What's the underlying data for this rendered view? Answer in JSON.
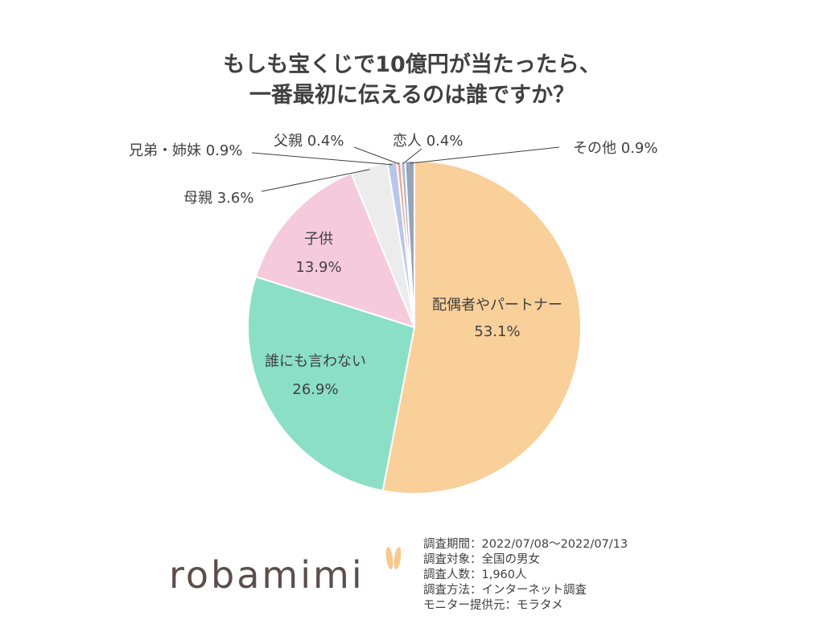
{
  "title_lines": [
    "もしも宝くじで10億円が当たったら、",
    "一番最初に伝えるのは誰ですか？"
  ],
  "chart_data": {
    "type": "pie",
    "title": "もしも宝くじで10億円が当たったら、一番最初に伝えるのは誰ですか？",
    "start": "top",
    "direction": "clockwise",
    "slices": [
      {
        "label": "配偶者やパートナー",
        "value": 53.1,
        "display": "53.1%",
        "color": "#f9d09a",
        "label_position": "inside"
      },
      {
        "label": "誰にも言わない",
        "value": 26.9,
        "display": "26.9%",
        "color": "#8adfc5",
        "label_position": "inside"
      },
      {
        "label": "子供",
        "value": 13.9,
        "display": "13.9%",
        "color": "#f6cadd",
        "label_position": "inside"
      },
      {
        "label": "母親",
        "value": 3.6,
        "display": "3.6%",
        "color": "#ececec",
        "label_position": "outside"
      },
      {
        "label": "兄弟・姉妹",
        "value": 0.9,
        "display": "0.9%",
        "color": "#b9c6ea",
        "label_position": "outside"
      },
      {
        "label": "父親",
        "value": 0.4,
        "display": "0.4%",
        "color": "#f1a98c",
        "label_position": "outside"
      },
      {
        "label": "恋人",
        "value": 0.4,
        "display": "0.4%",
        "color": "#a3b8d6",
        "label_position": "outside"
      },
      {
        "label": "その他",
        "value": 0.9,
        "display": "0.9%",
        "color": "#98a4b8",
        "label_position": "outside"
      }
    ]
  },
  "survey": [
    "調査期間：2022/07/08～2022/07/13",
    "調査対象：全国の男女",
    "調査人数：1,960人",
    "調査方法：インターネット調査",
    "モニター提供元：モラタメ"
  ],
  "logo": {
    "text": "robamimi",
    "color": "#5b4f4c",
    "accent": "#f7c98d"
  }
}
